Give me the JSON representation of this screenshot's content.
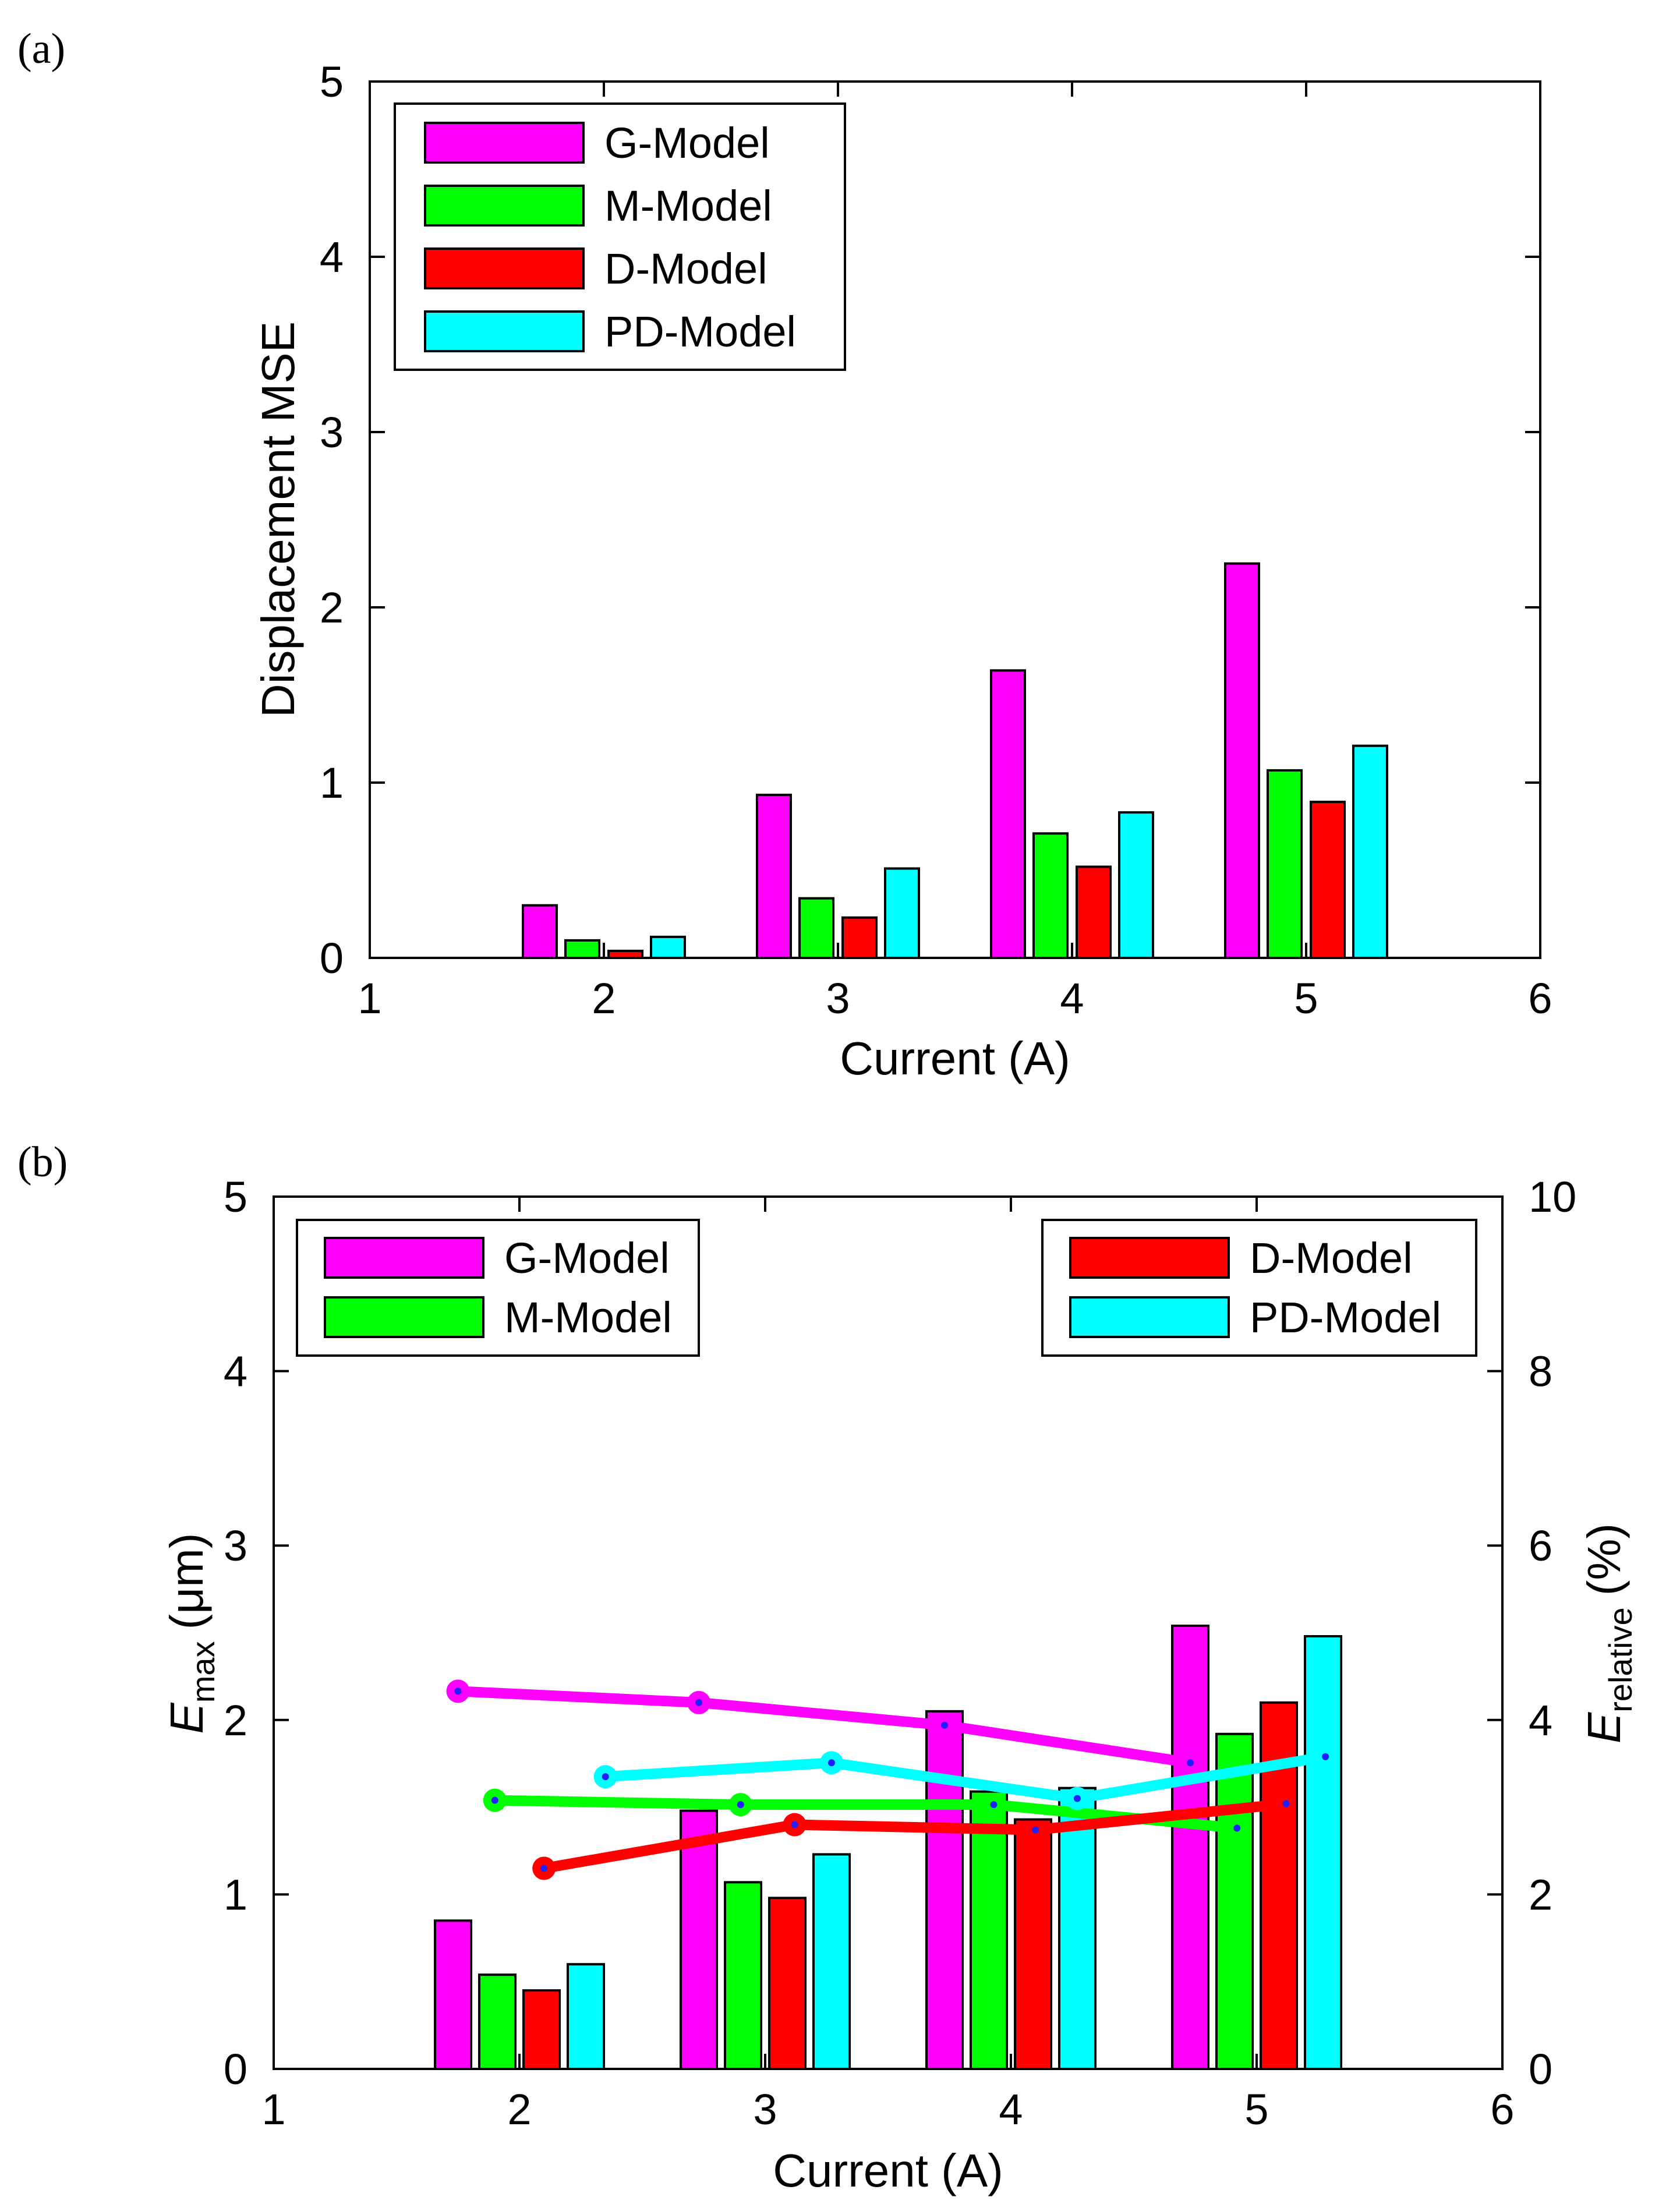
{
  "chart_data": [
    {
      "panel_label": "(a)",
      "type": "bar",
      "title": "",
      "xlabel": "Current (A)",
      "ylabel": "Displacement MSE",
      "xlim": [
        1,
        6
      ],
      "ylim": [
        0,
        5
      ],
      "xticks": [
        "1",
        "2",
        "3",
        "4",
        "5",
        "6"
      ],
      "yticks": [
        "0",
        "1",
        "2",
        "3",
        "4",
        "5"
      ],
      "categories": [
        2,
        3,
        4,
        5
      ],
      "series": [
        {
          "name": "G-Model",
          "color": "#ff00ff",
          "values": [
            0.3,
            0.93,
            1.64,
            2.25
          ]
        },
        {
          "name": "M-Model",
          "color": "#00ff00",
          "values": [
            0.1,
            0.34,
            0.71,
            1.07
          ]
        },
        {
          "name": "D-Model",
          "color": "#ff0000",
          "values": [
            0.04,
            0.23,
            0.52,
            0.89
          ]
        },
        {
          "name": "PD-Model",
          "color": "#00ffff",
          "values": [
            0.12,
            0.51,
            0.83,
            1.21
          ]
        }
      ],
      "legend": "top-left"
    },
    {
      "panel_label": "(b)",
      "type": "bar",
      "title": "",
      "xlabel": "Current (A)",
      "ylabel_main": "E",
      "ylabel_sub": "max",
      "ylabel_unit": "(μm)",
      "ylabel_right_main": "E",
      "ylabel_right_sub": "relative",
      "ylabel_right_unit": "(%)",
      "xlim": [
        1,
        6
      ],
      "ylim": [
        0,
        5
      ],
      "ylim_right": [
        0,
        10
      ],
      "xticks": [
        "1",
        "2",
        "3",
        "4",
        "5",
        "6"
      ],
      "yticks": [
        "0",
        "1",
        "2",
        "3",
        "4",
        "5"
      ],
      "yticks_right": [
        "0",
        "2",
        "4",
        "6",
        "8",
        "10"
      ],
      "categories": [
        2,
        3,
        4,
        5
      ],
      "series": [
        {
          "name": "G-Model",
          "color": "#ff00ff",
          "values": [
            0.85,
            1.48,
            2.05,
            2.54
          ]
        },
        {
          "name": "M-Model",
          "color": "#00ff00",
          "values": [
            0.54,
            1.07,
            1.59,
            1.92
          ]
        },
        {
          "name": "D-Model",
          "color": "#ff0000",
          "values": [
            0.45,
            0.98,
            1.43,
            2.1
          ]
        },
        {
          "name": "PD-Model",
          "color": "#00ffff",
          "values": [
            0.6,
            1.23,
            1.61,
            2.48
          ]
        }
      ],
      "line_series_right_axis": [
        {
          "name": "G-Model",
          "color": "#ff00ff",
          "x": [
            1.75,
            2.73,
            3.73,
            4.73
          ],
          "values": [
            4.33,
            4.2,
            3.94,
            3.51
          ]
        },
        {
          "name": "M-Model",
          "color": "#00ff00",
          "x": [
            1.9,
            2.9,
            3.93,
            4.92
          ],
          "values": [
            3.08,
            3.03,
            3.03,
            2.76
          ]
        },
        {
          "name": "D-Model",
          "color": "#ff0000",
          "x": [
            2.1,
            3.12,
            4.1,
            5.12
          ],
          "values": [
            2.3,
            2.8,
            2.74,
            3.04
          ]
        },
        {
          "name": "PD-Model",
          "color": "#00ffff",
          "x": [
            2.35,
            3.27,
            4.27,
            5.28
          ],
          "values": [
            3.35,
            3.51,
            3.1,
            3.58
          ]
        }
      ],
      "legend_left": [
        "G-Model",
        "M-Model"
      ],
      "legend_right": [
        "D-Model",
        "PD-Model"
      ]
    }
  ]
}
